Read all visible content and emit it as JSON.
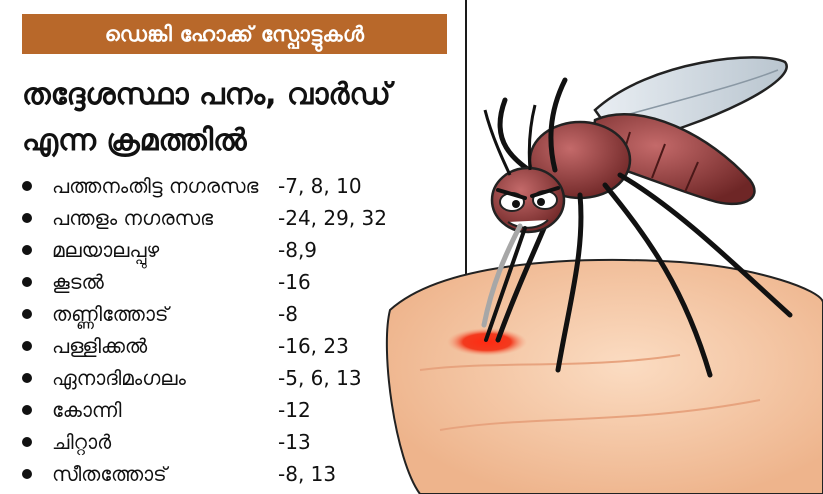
{
  "banner": {
    "title": "ഡെങ്കി ഹോക്ക് സ്പോട്ടുകൾ"
  },
  "heading": {
    "line1": "തദ്ദേശസ്ഥാ പനം, വാർഡ്",
    "line2": "എന്ന ക്രമത്തിൽ"
  },
  "list": [
    {
      "place": "പത്തനംതിട്ട നഗരസഭ",
      "wards": "-7, 8, 10"
    },
    {
      "place": "പന്തളം നഗരസഭ",
      "wards": "-24, 29, 32"
    },
    {
      "place": "മലയാലപ്പുഴ",
      "wards": "-8,9"
    },
    {
      "place": "കൂടൽ",
      "wards": "-16"
    },
    {
      "place": "തണ്ണിത്തോട്",
      "wards": "-8"
    },
    {
      "place": "പള്ളിക്കൽ",
      "wards": "-16, 23"
    },
    {
      "place": "ഏനാദിമംഗലം",
      "wards": "-5, 6, 13"
    },
    {
      "place": "കോന്നി",
      "wards": "-12"
    },
    {
      "place": "ചിറ്റാർ",
      "wards": "-13"
    },
    {
      "place": "സീതത്തോട്",
      "wards": "-8, 13"
    }
  ],
  "illustration": {
    "icon": "mosquito-biting-skin-icon"
  },
  "colors": {
    "banner": "#b8682a",
    "text": "#111111",
    "mosquito": "#8a3a3a",
    "skin": "#f3c7a4",
    "blood": "#e8241c"
  }
}
